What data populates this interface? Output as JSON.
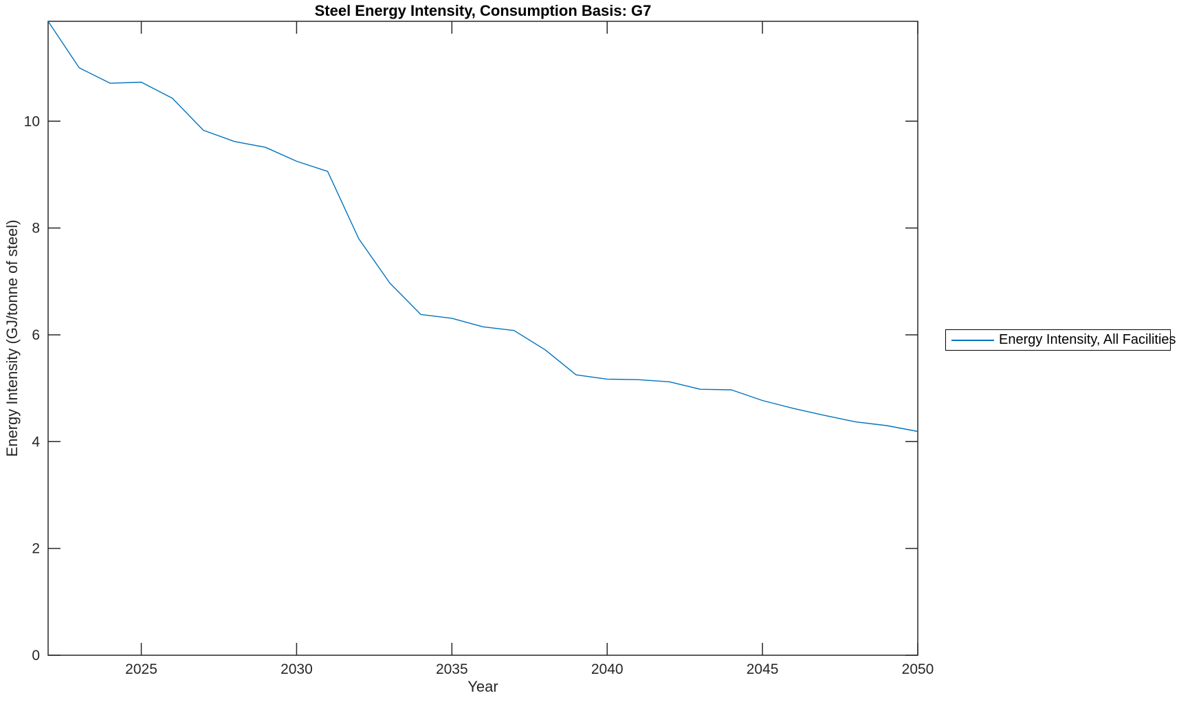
{
  "figure": {
    "background": "#ffffff"
  },
  "chart_data": {
    "type": "line",
    "title": "Steel Energy Intensity, Consumption Basis: G7",
    "xlabel": "Year",
    "ylabel": "Energy Intensity (GJ/tonne of steel)",
    "legend": [
      "Energy Intensity, All Facilities"
    ],
    "legend_position": "right-outside",
    "grid": false,
    "box": true,
    "tick_direction": "in",
    "xlim": [
      2022,
      2050
    ],
    "ylim": [
      0,
      11.87
    ],
    "xticks": [
      2025,
      2030,
      2035,
      2040,
      2045,
      2050
    ],
    "yticks": [
      0,
      2,
      4,
      6,
      8,
      10
    ],
    "x": [
      2022,
      2023,
      2024,
      2025,
      2026,
      2027,
      2028,
      2029,
      2030,
      2031,
      2032,
      2033,
      2034,
      2035,
      2036,
      2037,
      2038,
      2039,
      2040,
      2041,
      2042,
      2043,
      2044,
      2045,
      2046,
      2047,
      2048,
      2049,
      2050
    ],
    "series": [
      {
        "name": "Energy Intensity, All Facilities",
        "color": "#0072BD",
        "values": [
          11.87,
          11.0,
          10.71,
          10.73,
          10.43,
          9.83,
          9.62,
          9.51,
          9.25,
          9.06,
          7.8,
          6.97,
          6.38,
          6.31,
          6.15,
          6.08,
          5.72,
          5.25,
          5.17,
          5.16,
          5.12,
          4.98,
          4.97,
          4.77,
          4.62,
          4.49,
          4.37,
          4.3,
          4.19
        ]
      }
    ],
    "axis_color": "#262626",
    "title_color": "#000000"
  }
}
